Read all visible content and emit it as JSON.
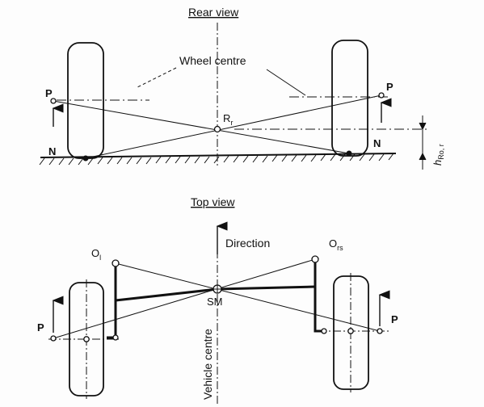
{
  "rear_view": {
    "title": "Rear view",
    "wheel_centre_label": "Wheel centre",
    "left_force_label": "P",
    "right_force_label": "P",
    "left_contact_label": "N",
    "right_contact_label": "N",
    "roll_centre_label": "R",
    "roll_centre_sub": "r",
    "height_label": "h",
    "height_sub": "Ro, r"
  },
  "top_view": {
    "title": "Top view",
    "direction_label": "Direction",
    "vehicle_centre_label": "Vehicle centre",
    "centre_point_label": "SM",
    "left_pivot_label": "O",
    "left_pivot_sub": "l",
    "right_pivot_label": "O",
    "right_pivot_sub": "rs",
    "left_force_label": "P",
    "right_force_label": "P"
  },
  "colors": {
    "ink": "#111111",
    "paper": "#fdfdfd"
  }
}
